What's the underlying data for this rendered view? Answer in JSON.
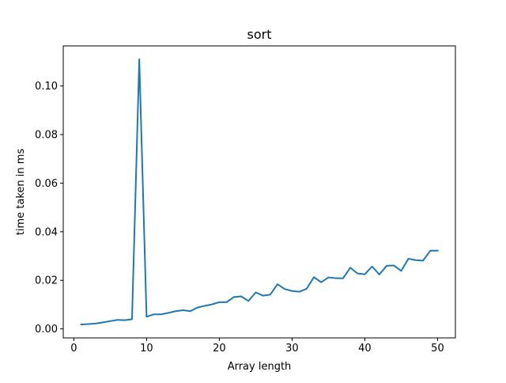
{
  "chart_data": {
    "type": "line",
    "title": "sort",
    "xlabel": "Array length",
    "ylabel": "time taken in ms",
    "xlim": [
      -1.45,
      52.45
    ],
    "ylim": [
      -0.0037,
      0.1165
    ],
    "xticks": [
      0,
      10,
      20,
      30,
      40,
      50
    ],
    "yticks": [
      0.0,
      0.02,
      0.04,
      0.06,
      0.08,
      0.1
    ],
    "ytick_labels": [
      "0.00",
      "0.02",
      "0.04",
      "0.06",
      "0.08",
      "0.10"
    ],
    "grid": false,
    "series": [
      {
        "color": "#1f77b4",
        "x": [
          1,
          2,
          3,
          4,
          5,
          6,
          7,
          8,
          9,
          10,
          11,
          12,
          13,
          14,
          15,
          16,
          17,
          18,
          19,
          20,
          21,
          22,
          23,
          24,
          25,
          26,
          27,
          28,
          29,
          30,
          31,
          32,
          33,
          34,
          35,
          36,
          37,
          38,
          39,
          40,
          41,
          42,
          43,
          44,
          45,
          46,
          47,
          48,
          49,
          50
        ],
        "y": [
          0.0018,
          0.002,
          0.0022,
          0.0027,
          0.0032,
          0.0037,
          0.0036,
          0.004,
          0.111,
          0.005,
          0.006,
          0.006,
          0.0066,
          0.0073,
          0.0077,
          0.0073,
          0.0088,
          0.0095,
          0.0101,
          0.011,
          0.011,
          0.0131,
          0.0134,
          0.0115,
          0.015,
          0.0137,
          0.0141,
          0.0184,
          0.0164,
          0.0156,
          0.0153,
          0.0165,
          0.0213,
          0.0192,
          0.0212,
          0.0209,
          0.0208,
          0.0252,
          0.0228,
          0.0225,
          0.0257,
          0.0224,
          0.026,
          0.0261,
          0.0239,
          0.0289,
          0.0283,
          0.0281,
          0.0322,
          0.0322
        ]
      }
    ]
  }
}
